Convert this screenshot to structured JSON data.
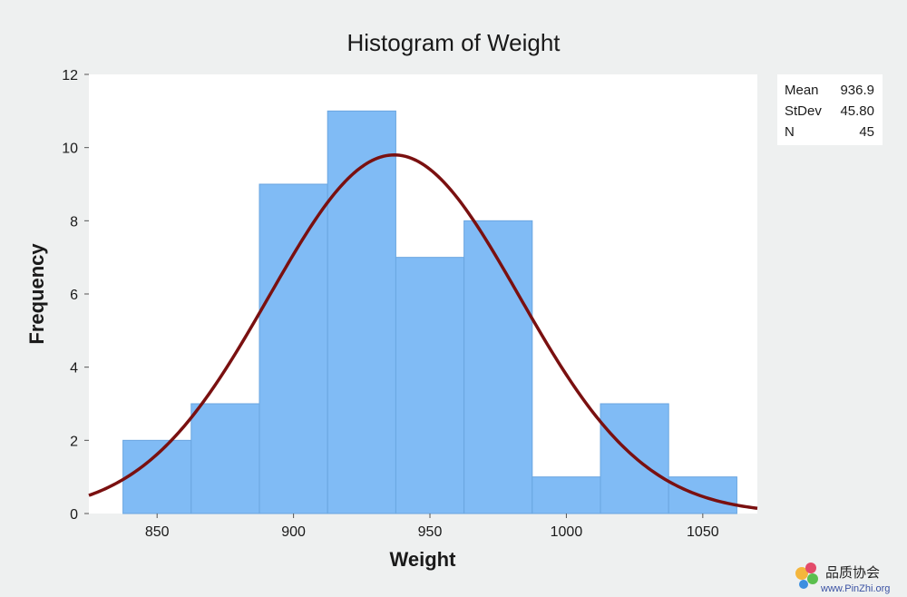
{
  "chart_data": {
    "type": "bar",
    "title": "Histogram of Weight",
    "xlabel": "Weight",
    "ylabel": "Frequency",
    "bin_width": 25,
    "bins": [
      {
        "start": 837.5,
        "end": 862.5,
        "count": 2
      },
      {
        "start": 862.5,
        "end": 887.5,
        "count": 3
      },
      {
        "start": 887.5,
        "end": 912.5,
        "count": 9
      },
      {
        "start": 912.5,
        "end": 937.5,
        "count": 11
      },
      {
        "start": 937.5,
        "end": 962.5,
        "count": 7
      },
      {
        "start": 962.5,
        "end": 987.5,
        "count": 8
      },
      {
        "start": 987.5,
        "end": 1012.5,
        "count": 1
      },
      {
        "start": 1012.5,
        "end": 1037.5,
        "count": 3
      },
      {
        "start": 1037.5,
        "end": 1062.5,
        "count": 1
      }
    ],
    "xlim": [
      825,
      1070
    ],
    "ylim": [
      0,
      12
    ],
    "x_ticks": [
      "850",
      "900",
      "950",
      "1000",
      "1050"
    ],
    "y_ticks": [
      "0",
      "2",
      "4",
      "6",
      "8",
      "10",
      "12"
    ],
    "normal_fit": {
      "mean": 936.9,
      "stdev": 45.8,
      "n": 45
    },
    "stats": [
      {
        "label": "Mean",
        "value": "936.9"
      },
      {
        "label": "StDev",
        "value": "45.80"
      },
      {
        "label": "N",
        "value": "45"
      }
    ],
    "colors": {
      "bar": "#80bbf5",
      "bar_edge": "#6aa6e0",
      "curve": "#7a1010",
      "background": "#eef0f0",
      "plot_bg": "#ffffff"
    }
  },
  "watermark": {
    "name": "品质协会",
    "url": "www.PinZhi.org"
  }
}
